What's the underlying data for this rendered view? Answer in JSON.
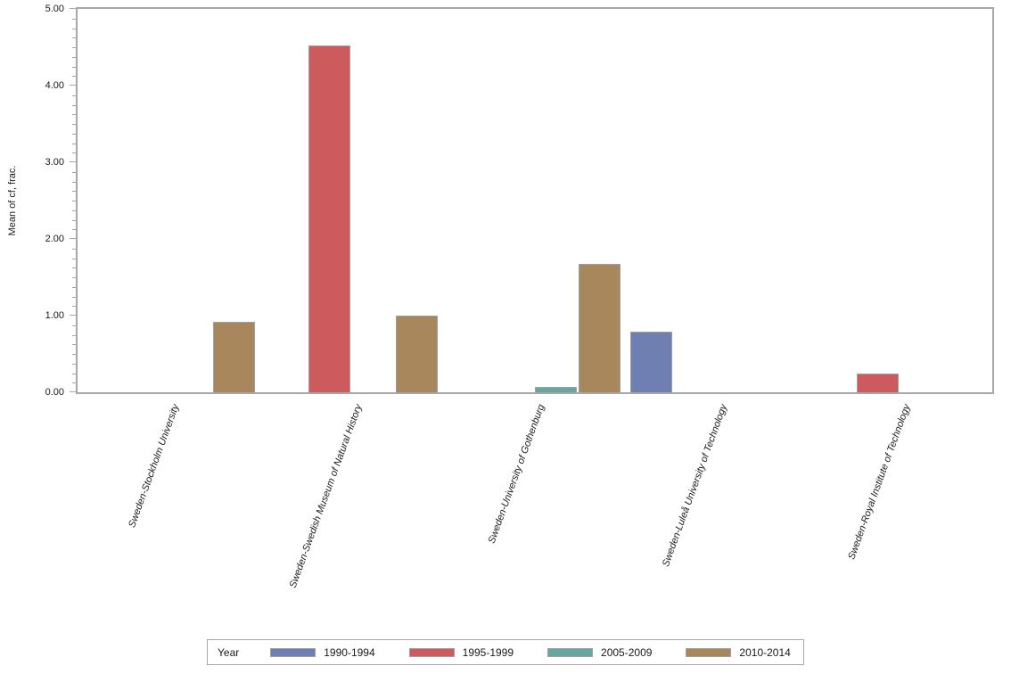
{
  "chart_data": {
    "type": "bar",
    "title": "",
    "xlabel": "",
    "ylabel": "Mean of cf, frac.",
    "ylim": [
      0,
      5
    ],
    "ytick_labels": [
      "0.00",
      "1.00",
      "2.00",
      "3.00",
      "4.00",
      "5.00"
    ],
    "minor_ticks_between_majors": 7,
    "grid": false,
    "legend_position": "bottom",
    "legend_title": "Year",
    "categories": [
      "Sweden-Stockholm University",
      "Sweden-Swedish Museum of Natural History",
      "Sweden-University of Gothenburg",
      "Sweden-Luleå University of Technology",
      "Sweden-Royal Institute of Technology"
    ],
    "series": [
      {
        "name": "1990-1994",
        "color": "#6F7FB2",
        "values": [
          null,
          null,
          null,
          0.79,
          null
        ]
      },
      {
        "name": "1995-1999",
        "color": "#CD5B5E",
        "values": [
          null,
          4.52,
          null,
          null,
          0.24
        ]
      },
      {
        "name": "2005-2009",
        "color": "#69A69F",
        "values": [
          null,
          null,
          0.07,
          null,
          null
        ]
      },
      {
        "name": "2010-2014",
        "color": "#A8875C",
        "values": [
          0.92,
          1.0,
          1.67,
          null,
          null
        ]
      }
    ],
    "colors": {
      "axis": "#a6a6ae",
      "bar_border": "#9fa0a4",
      "text": "#1a1a1a"
    }
  }
}
